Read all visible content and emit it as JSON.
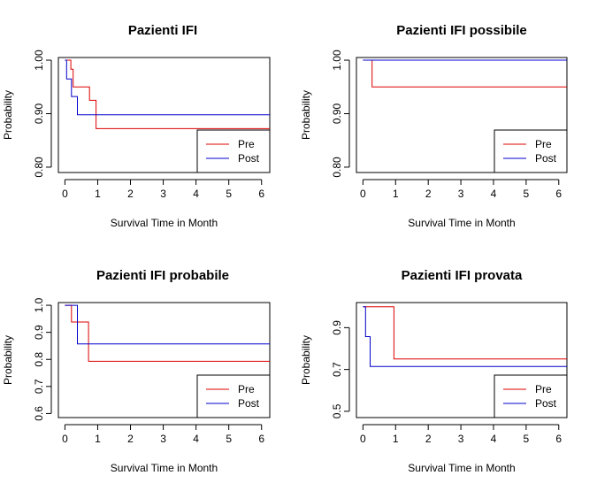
{
  "chart_data": [
    {
      "type": "line",
      "title": "Pazienti IFI",
      "xlabel": "Survival Time in Month",
      "ylabel": "Probability",
      "xlim": [
        -0.2,
        6.25
      ],
      "ylim": [
        0.79,
        1.005
      ],
      "xticks": [
        0,
        1,
        2,
        3,
        4,
        5,
        6
      ],
      "yticks": [
        0.8,
        0.9,
        1.0
      ],
      "ytick_labels": [
        "0.80",
        "0.90",
        "1.00"
      ],
      "legend": "bottom-right",
      "series": [
        {
          "name": "Pre",
          "color": "#dd0000",
          "x": [
            0,
            0.18,
            0.25,
            0.7,
            0.75,
            0.95,
            6.25
          ],
          "y": [
            1.0,
            0.983,
            0.95,
            0.95,
            0.925,
            0.872,
            0.872
          ]
        },
        {
          "name": "Post",
          "color": "#0000cc",
          "x": [
            0,
            0.05,
            0.2,
            0.38,
            6.25
          ],
          "y": [
            1.0,
            0.965,
            0.932,
            0.898,
            0.898
          ]
        }
      ]
    },
    {
      "type": "line",
      "title": "Pazienti IFI possibile",
      "xlabel": "Survival Time in Month",
      "ylabel": "Probability",
      "xlim": [
        -0.2,
        6.25
      ],
      "ylim": [
        0.79,
        1.005
      ],
      "xticks": [
        0,
        1,
        2,
        3,
        4,
        5,
        6
      ],
      "yticks": [
        0.8,
        0.9,
        1.0
      ],
      "ytick_labels": [
        "0.80",
        "0.90",
        "1.00"
      ],
      "legend": "bottom-right",
      "series": [
        {
          "name": "Pre",
          "color": "#dd0000",
          "x": [
            0,
            0.28,
            6.25
          ],
          "y": [
            1.0,
            0.95,
            0.95
          ]
        },
        {
          "name": "Post",
          "color": "#0000cc",
          "x": [
            0,
            6.25
          ],
          "y": [
            1.0,
            1.0
          ]
        }
      ]
    },
    {
      "type": "line",
      "title": "Pazienti IFI probabile",
      "xlabel": "Survival Time in Month",
      "ylabel": "Probability",
      "xlim": [
        -0.2,
        6.25
      ],
      "ylim": [
        0.585,
        1.01
      ],
      "xticks": [
        0,
        1,
        2,
        3,
        4,
        5,
        6
      ],
      "yticks": [
        0.6,
        0.7,
        0.8,
        0.9,
        1.0
      ],
      "ytick_labels": [
        "0.6",
        "0.7",
        "0.8",
        "0.9",
        "1.0"
      ],
      "legend": "bottom-right",
      "series": [
        {
          "name": "Pre",
          "color": "#dd0000",
          "x": [
            0,
            0.2,
            0.72,
            6.25
          ],
          "y": [
            1.0,
            0.938,
            0.793,
            0.793
          ]
        },
        {
          "name": "Post",
          "color": "#0000cc",
          "x": [
            0,
            0.38,
            6.25
          ],
          "y": [
            1.0,
            0.857,
            0.857
          ]
        }
      ]
    },
    {
      "type": "line",
      "title": "Pazienti IFI provata",
      "xlabel": "Survival Time in Month",
      "ylabel": "Probability",
      "xlim": [
        -0.2,
        6.25
      ],
      "ylim": [
        0.47,
        1.02
      ],
      "xticks": [
        0,
        1,
        2,
        3,
        4,
        5,
        6
      ],
      "yticks": [
        0.5,
        0.7,
        0.9
      ],
      "ytick_labels": [
        "0.5",
        "0.7",
        "0.9"
      ],
      "legend": "bottom-right",
      "series": [
        {
          "name": "Pre",
          "color": "#dd0000",
          "x": [
            0,
            0.95,
            6.25
          ],
          "y": [
            1.0,
            0.75,
            0.75
          ]
        },
        {
          "name": "Post",
          "color": "#0000cc",
          "x": [
            0,
            0.08,
            0.22,
            6.25
          ],
          "y": [
            1.0,
            0.857,
            0.714,
            0.714
          ]
        }
      ]
    }
  ]
}
